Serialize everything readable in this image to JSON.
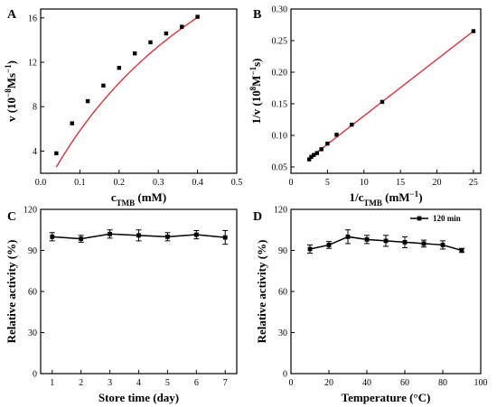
{
  "chart_data": [
    {
      "panel": "A",
      "type": "scatter",
      "xlabel_main": "c",
      "xlabel_sub": "TMB",
      "xlabel_unit": " (mM)",
      "ylabel_main": "v (10",
      "ylabel_sup": "−8",
      "ylabel_unit": "Ms",
      "ylabel_sup2": "−1",
      "ylabel_end": ")",
      "xlim": [
        0.0,
        0.5
      ],
      "ylim": [
        2,
        16.8
      ],
      "xticks": [
        0.0,
        0.1,
        0.2,
        0.3,
        0.4,
        0.5
      ],
      "xtick_labels": [
        "0.0",
        "0.1",
        "0.2",
        "0.3",
        "0.4",
        "0.5"
      ],
      "yticks": [
        4,
        8,
        12,
        16
      ],
      "ytick_labels": [
        "4",
        "8",
        "12",
        "16"
      ],
      "points": {
        "x": [
          0.04,
          0.08,
          0.12,
          0.16,
          0.2,
          0.24,
          0.28,
          0.32,
          0.36,
          0.4
        ],
        "y": [
          3.8,
          6.5,
          8.5,
          9.9,
          11.5,
          12.8,
          13.8,
          14.6,
          15.2,
          16.1
        ]
      },
      "fit": {
        "type": "michaelis-menten",
        "vmax": 38.5,
        "km": 0.56,
        "color": "#e0242b"
      },
      "marker_color": "#000000"
    },
    {
      "panel": "B",
      "type": "scatter",
      "xlabel_main": "1/c",
      "xlabel_sub": "TMB",
      "xlabel_unit": " (mM",
      "xlabel_sup": "−1",
      "xlabel_end": ")",
      "ylabel_main": "1/v  (10",
      "ylabel_sup": "8",
      "ylabel_unit": "M",
      "ylabel_sup2": "−1",
      "ylabel_end": "s)",
      "xlim": [
        0,
        26
      ],
      "ylim": [
        0.04,
        0.3
      ],
      "xticks": [
        0,
        5,
        10,
        15,
        20,
        25
      ],
      "xtick_labels": [
        "0",
        "5",
        "10",
        "15",
        "20",
        "25"
      ],
      "yticks": [
        0.05,
        0.1,
        0.15,
        0.2,
        0.25,
        0.3
      ],
      "ytick_labels": [
        "0.05",
        "0.10",
        "0.15",
        "0.20",
        "0.25",
        "0.30"
      ],
      "points": {
        "x": [
          2.5,
          2.78,
          3.125,
          3.57,
          4.17,
          5.0,
          6.25,
          8.33,
          12.5,
          25.0
        ],
        "y": [
          0.062,
          0.066,
          0.069,
          0.072,
          0.078,
          0.087,
          0.101,
          0.117,
          0.153,
          0.265
        ]
      },
      "fit": {
        "type": "linear",
        "slope": 0.00895,
        "intercept": 0.0413,
        "x_range": [
          2.3,
          25.0
        ],
        "color": "#e0242b"
      },
      "marker_color": "#000000"
    },
    {
      "panel": "C",
      "type": "line",
      "xlabel": "Store time (day)",
      "ylabel": "Relative activity (%)",
      "xlim": [
        0.6,
        7.4
      ],
      "ylim": [
        0,
        120
      ],
      "xticks": [
        1,
        2,
        3,
        4,
        5,
        6,
        7
      ],
      "xtick_labels": [
        "1",
        "2",
        "3",
        "4",
        "5",
        "6",
        "7"
      ],
      "yticks": [
        0,
        30,
        60,
        90,
        120
      ],
      "ytick_labels": [
        "0",
        "30",
        "60",
        "90",
        "120"
      ],
      "series": [
        {
          "x": [
            1,
            2,
            3,
            4,
            5,
            6,
            7
          ],
          "y": [
            100,
            98.5,
            102,
            101,
            100,
            101.5,
            99.5
          ],
          "err": [
            3,
            2.5,
            3,
            4,
            3,
            3,
            5
          ]
        }
      ]
    },
    {
      "panel": "D",
      "type": "line",
      "xlabel": "Temperature (°C)",
      "ylabel": "Relative activity (%)",
      "xlim": [
        0,
        100
      ],
      "ylim": [
        0,
        120
      ],
      "xticks": [
        0,
        20,
        40,
        60,
        80,
        100
      ],
      "xtick_labels": [
        "0",
        "20",
        "40",
        "60",
        "80",
        "100"
      ],
      "yticks": [
        0,
        30,
        60,
        90,
        120
      ],
      "ytick_labels": [
        "0",
        "30",
        "60",
        "90",
        "120"
      ],
      "legend": "top-right",
      "series": [
        {
          "name": "120 min",
          "x": [
            10,
            20,
            30,
            40,
            50,
            60,
            70,
            80,
            90
          ],
          "y": [
            91,
            94,
            100,
            98,
            97,
            96,
            95,
            94,
            90
          ],
          "err": [
            3,
            2.5,
            5,
            3,
            4,
            4,
            2.5,
            3,
            1.5
          ]
        }
      ]
    }
  ]
}
